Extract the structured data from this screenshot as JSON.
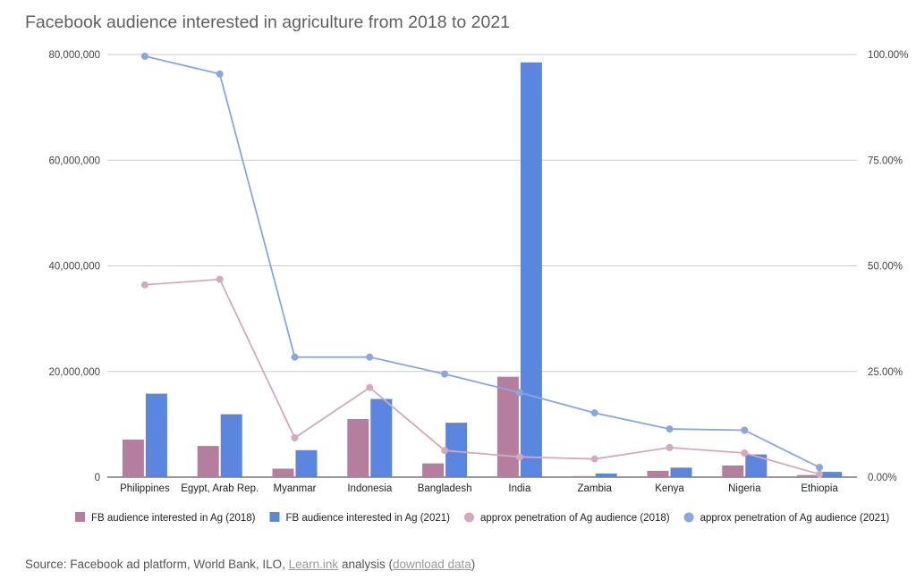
{
  "chart_data": {
    "type": "bar",
    "title": "Facebook audience interested in agriculture from 2018 to 2021",
    "categories": [
      "Philippines",
      "Egypt, Arab Rep.",
      "Myanmar",
      "Indonesia",
      "Bangladesh",
      "India",
      "Zambia",
      "Kenya",
      "Nigeria",
      "Ethiopia"
    ],
    "y_left": {
      "ylim": [
        0,
        80000000
      ],
      "ticks": [
        0,
        20000000,
        40000000,
        60000000,
        80000000
      ],
      "tick_labels": [
        "0",
        "20,000,000",
        "40,000,000",
        "60,000,000",
        "80,000,000"
      ]
    },
    "y_right": {
      "ylim": [
        0,
        100
      ],
      "ticks": [
        0,
        25,
        50,
        75,
        100
      ],
      "tick_labels": [
        "0.00%",
        "25.00%",
        "50.00%",
        "75.00%",
        "100.00%"
      ]
    },
    "series": [
      {
        "name": "FB audience interested in Ag (2018)",
        "type": "bar",
        "axis": "left",
        "color": "#b57e9e",
        "values": [
          7100000,
          5900000,
          1600000,
          11000000,
          2600000,
          19000000,
          200000,
          1200000,
          2200000,
          400000
        ]
      },
      {
        "name": "FB audience interested in Ag (2021)",
        "type": "bar",
        "axis": "left",
        "color": "#5b86e0",
        "values": [
          15800000,
          11900000,
          5100000,
          14800000,
          10300000,
          78500000,
          700000,
          1800000,
          4300000,
          1000000
        ]
      },
      {
        "name": "approx penetration of Ag audience (2018)",
        "type": "line",
        "axis": "right",
        "color": "#d3a9bd",
        "values": [
          45.5,
          46.8,
          9.3,
          21.2,
          6.3,
          4.8,
          4.3,
          7.0,
          5.7,
          0.7
        ]
      },
      {
        "name": "approx penetration of Ag audience (2021)",
        "type": "line",
        "axis": "right",
        "color": "#89a6e0",
        "values": [
          99.6,
          95.4,
          28.4,
          28.4,
          24.4,
          20.0,
          15.2,
          11.4,
          11.1,
          2.3
        ]
      }
    ],
    "grid": true,
    "legend": "bottom"
  },
  "source": {
    "prefix": "Source: Facebook ad platform, World Bank, ILO, ",
    "link1": "Learn.ink",
    "middle": " analysis (",
    "link2": "download data",
    "suffix": ")"
  }
}
